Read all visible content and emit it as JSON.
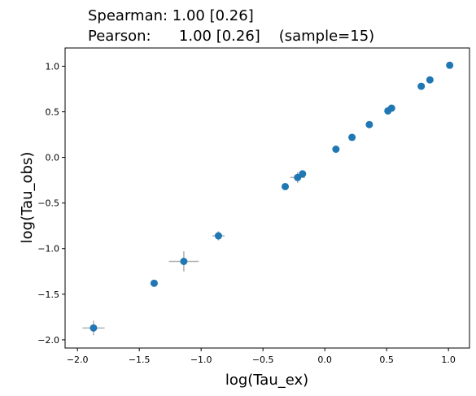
{
  "chart_data": {
    "type": "scatter",
    "title_lines": [
      "Spearman: 1.00 [0.26]",
      "Pearson:      1.00 [0.26]    (sample=15)"
    ],
    "xlabel": "log(Tau_ex)",
    "ylabel": "log(Tau_obs)",
    "xlim": [
      -2.1,
      1.17
    ],
    "ylim": [
      -2.09,
      1.2
    ],
    "xticks": [
      -2.0,
      -1.5,
      -1.0,
      -0.5,
      0.0,
      0.5,
      1.0
    ],
    "xtick_labels": [
      "−2.0",
      "−1.5",
      "−1.0",
      "−0.5",
      "0.0",
      "0.5",
      "1.0"
    ],
    "yticks": [
      -2.0,
      -1.5,
      -1.0,
      -0.5,
      0.0,
      0.5,
      1.0
    ],
    "ytick_labels": [
      "−2.0",
      "−1.5",
      "−1.0",
      "−0.5",
      "0.0",
      "0.5",
      "1.0"
    ],
    "grid": false,
    "marker_color": "#1f77b4",
    "errorbar_color": "#b0b0b0",
    "points": [
      {
        "x": -1.87,
        "y": -1.87,
        "xerr": 0.09,
        "yerr": 0.08
      },
      {
        "x": -1.38,
        "y": -1.38,
        "xerr": 0.03,
        "yerr": 0.03
      },
      {
        "x": -1.14,
        "y": -1.14,
        "xerr": 0.12,
        "yerr": 0.11
      },
      {
        "x": -0.86,
        "y": -0.86,
        "xerr": 0.05,
        "yerr": 0.05
      },
      {
        "x": -0.32,
        "y": -0.32,
        "xerr": 0.01,
        "yerr": 0.01
      },
      {
        "x": -0.22,
        "y": -0.22,
        "xerr": 0.06,
        "yerr": 0.06
      },
      {
        "x": -0.18,
        "y": -0.18,
        "xerr": 0.02,
        "yerr": 0.02
      },
      {
        "x": 0.09,
        "y": 0.09,
        "xerr": 0.01,
        "yerr": 0.01
      },
      {
        "x": 0.22,
        "y": 0.22,
        "xerr": 0.01,
        "yerr": 0.01
      },
      {
        "x": 0.36,
        "y": 0.36,
        "xerr": 0.01,
        "yerr": 0.01
      },
      {
        "x": 0.51,
        "y": 0.51,
        "xerr": 0.01,
        "yerr": 0.01
      },
      {
        "x": 0.54,
        "y": 0.54,
        "xerr": 0.01,
        "yerr": 0.01
      },
      {
        "x": 0.78,
        "y": 0.78,
        "xerr": 0.01,
        "yerr": 0.01
      },
      {
        "x": 0.85,
        "y": 0.85,
        "xerr": 0.01,
        "yerr": 0.01
      },
      {
        "x": 1.01,
        "y": 1.01,
        "xerr": 0.01,
        "yerr": 0.01
      }
    ]
  }
}
